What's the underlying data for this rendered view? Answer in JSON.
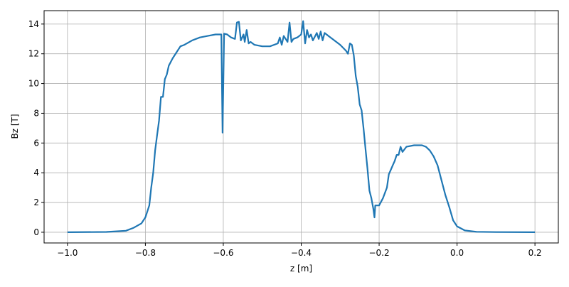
{
  "chart_data": {
    "type": "line",
    "title": "",
    "xlabel": "z [m]",
    "ylabel": "Bz [T]",
    "xlim": [
      -1.06,
      0.26
    ],
    "ylim": [
      -0.72,
      14.9
    ],
    "xticks": [
      -1.0,
      -0.8,
      -0.6,
      -0.4,
      -0.2,
      0.0,
      0.2
    ],
    "xtick_labels": [
      "−1.0",
      "−0.8",
      "−0.6",
      "−0.4",
      "−0.2",
      "0.0",
      "0.2"
    ],
    "yticks": [
      0,
      2,
      4,
      6,
      8,
      10,
      12,
      14
    ],
    "ytick_labels": [
      "0",
      "2",
      "4",
      "6",
      "8",
      "10",
      "12",
      "14"
    ],
    "grid": true,
    "color": "#1f77b4",
    "series": [
      {
        "x": [
          -1.0,
          -0.9,
          -0.85,
          -0.83,
          -0.81,
          -0.8,
          -0.79,
          -0.785,
          -0.78,
          -0.775,
          -0.77,
          -0.765,
          -0.76,
          -0.755,
          -0.75,
          -0.745,
          -0.74,
          -0.73,
          -0.72,
          -0.71,
          -0.7,
          -0.68,
          -0.66,
          -0.64,
          -0.62,
          -0.605,
          -0.602,
          -0.598,
          -0.59,
          -0.58,
          -0.57,
          -0.565,
          -0.56,
          -0.555,
          -0.548,
          -0.545,
          -0.54,
          -0.535,
          -0.53,
          -0.52,
          -0.5,
          -0.48,
          -0.46,
          -0.455,
          -0.45,
          -0.445,
          -0.44,
          -0.435,
          -0.43,
          -0.425,
          -0.42,
          -0.41,
          -0.4,
          -0.395,
          -0.39,
          -0.385,
          -0.38,
          -0.375,
          -0.37,
          -0.36,
          -0.355,
          -0.35,
          -0.345,
          -0.34,
          -0.33,
          -0.32,
          -0.3,
          -0.285,
          -0.28,
          -0.275,
          -0.27,
          -0.265,
          -0.26,
          -0.255,
          -0.25,
          -0.245,
          -0.24,
          -0.235,
          -0.23,
          -0.225,
          -0.22,
          -0.215,
          -0.212,
          -0.21,
          -0.2,
          -0.19,
          -0.18,
          -0.175,
          -0.17,
          -0.165,
          -0.16,
          -0.155,
          -0.15,
          -0.145,
          -0.14,
          -0.13,
          -0.11,
          -0.09,
          -0.08,
          -0.07,
          -0.06,
          -0.05,
          -0.04,
          -0.03,
          -0.02,
          -0.01,
          0.0,
          0.02,
          0.05,
          0.1,
          0.2
        ],
        "y": [
          0,
          0.02,
          0.1,
          0.3,
          0.6,
          1.0,
          1.8,
          3.0,
          4.0,
          5.5,
          6.5,
          7.5,
          9.1,
          9.1,
          10.3,
          10.6,
          11.2,
          11.7,
          12.1,
          12.5,
          12.6,
          12.9,
          13.1,
          13.2,
          13.3,
          13.3,
          6.7,
          13.35,
          13.3,
          13.1,
          13.0,
          14.1,
          14.15,
          12.9,
          13.3,
          12.8,
          13.6,
          12.7,
          12.8,
          12.6,
          12.5,
          12.5,
          12.7,
          13.1,
          12.6,
          13.2,
          13.0,
          12.8,
          14.1,
          12.8,
          13.0,
          13.1,
          13.3,
          14.2,
          12.7,
          13.6,
          13.1,
          13.3,
          12.9,
          13.4,
          13.0,
          13.5,
          12.9,
          13.4,
          13.2,
          13.0,
          12.6,
          12.2,
          12.0,
          12.7,
          12.6,
          11.9,
          10.5,
          9.8,
          8.6,
          8.2,
          7.0,
          5.6,
          4.3,
          2.8,
          2.3,
          1.6,
          1.0,
          1.8,
          1.8,
          2.3,
          3.0,
          3.9,
          4.2,
          4.5,
          4.8,
          5.2,
          5.2,
          5.75,
          5.4,
          5.75,
          5.85,
          5.85,
          5.75,
          5.5,
          5.1,
          4.5,
          3.5,
          2.5,
          1.7,
          0.8,
          0.4,
          0.12,
          0.03,
          0.01,
          0.0
        ]
      }
    ]
  }
}
